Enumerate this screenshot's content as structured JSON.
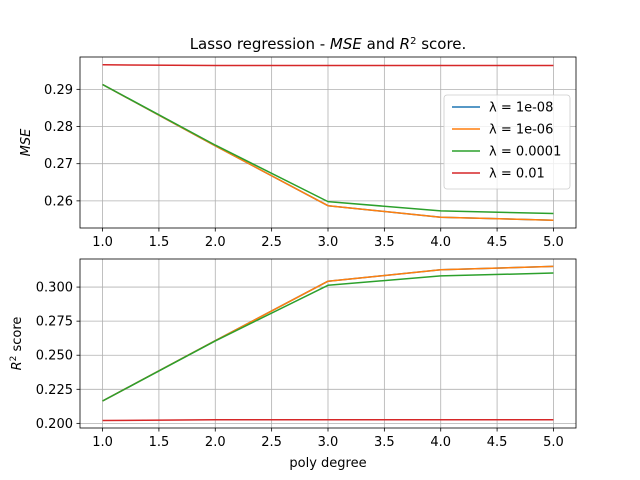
{
  "chart_data": [
    {
      "type": "line",
      "title": "Lasso regression - MSE and R² score.",
      "title_parts": [
        "Lasso regression - ",
        "MSE",
        " and ",
        "R",
        "2",
        " score."
      ],
      "xlabel": "",
      "ylabel": "MSE",
      "x": [
        1,
        2,
        3,
        4,
        5
      ],
      "xticks": [
        "1.0",
        "1.5",
        "2.0",
        "2.5",
        "3.0",
        "3.5",
        "4.0",
        "4.5",
        "5.0"
      ],
      "xtick_values": [
        1.0,
        1.5,
        2.0,
        2.5,
        3.0,
        3.5,
        4.0,
        4.5,
        5.0
      ],
      "xlim": [
        0.8,
        5.2
      ],
      "yticks": [
        "0.26",
        "0.27",
        "0.28",
        "0.29"
      ],
      "ytick_values": [
        0.26,
        0.27,
        0.28,
        0.29
      ],
      "ylim": [
        0.2527,
        0.2987
      ],
      "grid": true,
      "legend": "right",
      "series": [
        {
          "name": "λ = 1e-08",
          "color": "#1f77b4",
          "values": [
            0.2913,
            0.2748,
            0.2587,
            0.2556,
            0.2548
          ]
        },
        {
          "name": "λ = 1e-06",
          "color": "#ff7f0e",
          "values": [
            0.2913,
            0.2748,
            0.2587,
            0.2556,
            0.2548
          ]
        },
        {
          "name": "λ = 0.0001",
          "color": "#2ca02c",
          "values": [
            0.2913,
            0.275,
            0.2598,
            0.2573,
            0.2566
          ]
        },
        {
          "name": "λ = 0.01",
          "color": "#d62728",
          "values": [
            0.2966,
            0.2964,
            0.2964,
            0.2964,
            0.2964
          ]
        }
      ]
    },
    {
      "type": "line",
      "title": "",
      "xlabel": "poly degree",
      "ylabel": "R² score",
      "ylabel_parts": [
        "R",
        "2",
        " score"
      ],
      "x": [
        1,
        2,
        3,
        4,
        5
      ],
      "xticks": [
        "1.0",
        "1.5",
        "2.0",
        "2.5",
        "3.0",
        "3.5",
        "4.0",
        "4.5",
        "5.0"
      ],
      "xtick_values": [
        1.0,
        1.5,
        2.0,
        2.5,
        3.0,
        3.5,
        4.0,
        4.5,
        5.0
      ],
      "xlim": [
        0.8,
        5.2
      ],
      "yticks": [
        "0.200",
        "0.225",
        "0.250",
        "0.275",
        "0.300"
      ],
      "ytick_values": [
        0.2,
        0.225,
        0.25,
        0.275,
        0.3
      ],
      "ylim": [
        0.1966,
        0.3206
      ],
      "grid": true,
      "series": [
        {
          "name": "λ = 1e-08",
          "color": "#1f77b4",
          "values": [
            0.2164,
            0.2607,
            0.3043,
            0.3127,
            0.3152
          ]
        },
        {
          "name": "λ = 1e-06",
          "color": "#ff7f0e",
          "values": [
            0.2164,
            0.2607,
            0.3043,
            0.3127,
            0.3152
          ]
        },
        {
          "name": "λ = 0.0001",
          "color": "#2ca02c",
          "values": [
            0.2164,
            0.2605,
            0.3013,
            0.3082,
            0.3103
          ]
        },
        {
          "name": "λ = 0.01",
          "color": "#d62728",
          "values": [
            0.2021,
            0.2027,
            0.2027,
            0.2027,
            0.2027
          ]
        }
      ]
    }
  ]
}
